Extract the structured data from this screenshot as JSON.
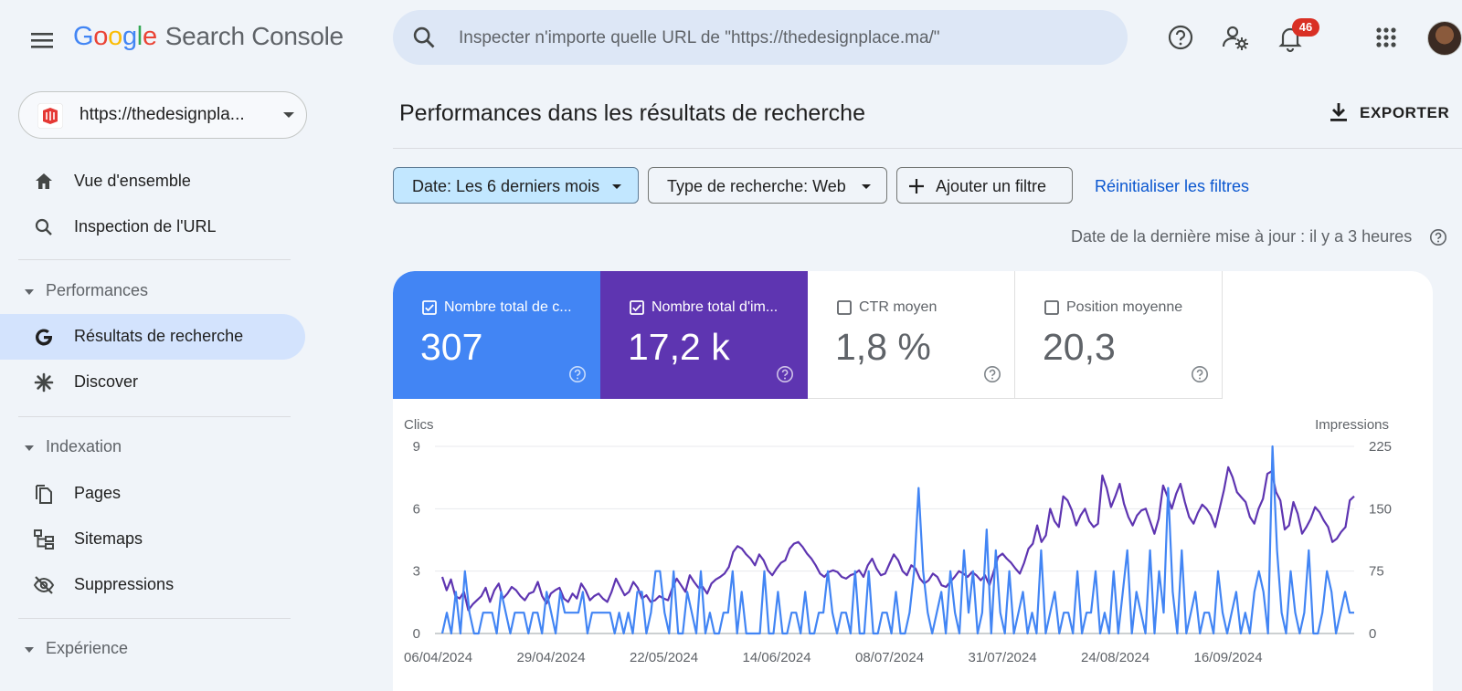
{
  "app": {
    "logo_letters": [
      {
        "ch": "G",
        "color": "#4285f4"
      },
      {
        "ch": "o",
        "color": "#ea4335"
      },
      {
        "ch": "o",
        "color": "#fbbc05"
      },
      {
        "ch": "g",
        "color": "#4285f4"
      },
      {
        "ch": "l",
        "color": "#34a853"
      },
      {
        "ch": "e",
        "color": "#ea4335"
      }
    ],
    "product_name": "Search Console"
  },
  "topbar": {
    "search_placeholder": "Inspecter n'importe quelle URL de \"https://thedesignplace.ma/\"",
    "notification_count": "46",
    "icons": [
      "menu-icon",
      "search-icon",
      "help-icon",
      "manage-users-icon",
      "notifications-icon",
      "apps-grid-icon",
      "avatar"
    ]
  },
  "sidebar": {
    "property": "https://thedesignpla...",
    "items": [
      {
        "id": "overview",
        "label": "Vue d'ensemble",
        "icon": "home-icon"
      },
      {
        "id": "url-inspection",
        "label": "Inspection de l'URL",
        "icon": "search-icon"
      }
    ],
    "sections": [
      {
        "label": "Performances"
      },
      {
        "label": "Indexation"
      },
      {
        "label": "Expérience"
      }
    ],
    "perf_items": [
      {
        "id": "search-results",
        "label": "Résultats de recherche",
        "icon": "google-g-icon",
        "active": true
      },
      {
        "id": "discover",
        "label": "Discover",
        "icon": "asterisk-icon"
      }
    ],
    "index_items": [
      {
        "id": "pages",
        "label": "Pages",
        "icon": "pages-icon"
      },
      {
        "id": "sitemaps",
        "label": "Sitemaps",
        "icon": "sitemap-icon"
      },
      {
        "id": "removals",
        "label": "Suppressions",
        "icon": "visibility-off-icon"
      }
    ]
  },
  "main": {
    "title": "Performances dans les résultats de recherche",
    "export_label": "EXPORTER",
    "filters": {
      "date": "Date: Les 6 derniers mois",
      "search_type": "Type de recherche: Web",
      "add_filter": "Ajouter un filtre",
      "reset": "Réinitialiser les filtres"
    },
    "last_update": "Date de la dernière mise à jour : il y a 3 heures",
    "metrics": [
      {
        "label": "Nombre total de c...",
        "value": "307",
        "checked": true,
        "color": "#4285f4"
      },
      {
        "label": "Nombre total d'im...",
        "value": "17,2 k",
        "checked": true,
        "color": "#5e35b1"
      },
      {
        "label": "CTR moyen",
        "value": "1,8 %",
        "checked": false
      },
      {
        "label": "Position moyenne",
        "value": "20,3",
        "checked": false
      }
    ]
  },
  "chart_data": {
    "type": "line",
    "left_axis_label": "Clics",
    "right_axis_label": "Impressions",
    "left_ylim": [
      0,
      9
    ],
    "right_ylim": [
      0,
      225
    ],
    "left_ticks": [
      "0",
      "3",
      "6",
      "9"
    ],
    "right_ticks": [
      "0",
      "75",
      "150",
      "225"
    ],
    "x_tick_labels": [
      "06/04/2024",
      "29/04/2024",
      "22/05/2024",
      "14/06/2024",
      "08/07/2024",
      "31/07/2024",
      "24/08/2024",
      "16/09/2024"
    ],
    "grid": true,
    "series": [
      {
        "name": "Clics",
        "axis": "left",
        "color": "#4285f4",
        "values": [
          0,
          1,
          0,
          2,
          0,
          3,
          1,
          0,
          0,
          1,
          1,
          1,
          0,
          2,
          1,
          0,
          1,
          1,
          1,
          0,
          1,
          1,
          0,
          2,
          1,
          0,
          2,
          1,
          1,
          1,
          1,
          2,
          0,
          1,
          1,
          1,
          1,
          1,
          0,
          1,
          0,
          1,
          0,
          2,
          2,
          0,
          1,
          3,
          3,
          1,
          0,
          3,
          0,
          0,
          2,
          1,
          0,
          3,
          0,
          1,
          0,
          0,
          1,
          1,
          3,
          0,
          2,
          0,
          0,
          0,
          0,
          3,
          0,
          0,
          2,
          0,
          0,
          1,
          1,
          0,
          2,
          0,
          0,
          1,
          1,
          3,
          1,
          0,
          1,
          1,
          0,
          3,
          0,
          0,
          3,
          0,
          0,
          1,
          1,
          0,
          2,
          0,
          0,
          1,
          3,
          7,
          3,
          1,
          0,
          1,
          2,
          0,
          3,
          1,
          0,
          4,
          1,
          3,
          0,
          1,
          5,
          0,
          4,
          1,
          0,
          3,
          0,
          1,
          2,
          0,
          1,
          0,
          4,
          0,
          1,
          2,
          0,
          1,
          1,
          0,
          3,
          0,
          1,
          1,
          3,
          0,
          1,
          0,
          3,
          0,
          2,
          4,
          0,
          2,
          1,
          0,
          4,
          0,
          3,
          1,
          7,
          2,
          0,
          4,
          0,
          1,
          2,
          0,
          1,
          1,
          0,
          3,
          1,
          0,
          1,
          2,
          0,
          1,
          0,
          2,
          3,
          2,
          0,
          9,
          4,
          1,
          0,
          3,
          1,
          0,
          1,
          4,
          0,
          0,
          1,
          3,
          2,
          0,
          1,
          2,
          1,
          1
        ]
      },
      {
        "name": "Impressions",
        "axis": "right",
        "color": "#5e35b1",
        "values": [
          68,
          52,
          65,
          45,
          42,
          50,
          28,
          35,
          40,
          45,
          55,
          38,
          52,
          60,
          42,
          48,
          56,
          52,
          45,
          40,
          48,
          50,
          62,
          45,
          36,
          48,
          52,
          55,
          42,
          38,
          48,
          42,
          60,
          52,
          40,
          45,
          48,
          42,
          38,
          50,
          66,
          56,
          46,
          50,
          62,
          55,
          42,
          46,
          38,
          40,
          45,
          42,
          40,
          55,
          66,
          58,
          50,
          70,
          62,
          55,
          56,
          48,
          60,
          65,
          68,
          72,
          80,
          98,
          105,
          102,
          95,
          90,
          82,
          95,
          88,
          76,
          70,
          78,
          85,
          88,
          102,
          108,
          110,
          104,
          96,
          90,
          82,
          72,
          68,
          74,
          76,
          74,
          68,
          66,
          70,
          72,
          76,
          68,
          82,
          90,
          78,
          70,
          72,
          84,
          95,
          88,
          75,
          70,
          82,
          78,
          66,
          60,
          64,
          72,
          68,
          58,
          56,
          62,
          68,
          75,
          72,
          68,
          74,
          70,
          64,
          70,
          58,
          75,
          92,
          96,
          90,
          85,
          78,
          72,
          85,
          102,
          108,
          130,
          110,
          118,
          150,
          135,
          128,
          165,
          160,
          148,
          130,
          142,
          150,
          135,
          128,
          132,
          190,
          175,
          152,
          165,
          180,
          156,
          140,
          130,
          142,
          148,
          150,
          135,
          120,
          138,
          178,
          165,
          150,
          168,
          180,
          158,
          140,
          132,
          145,
          155,
          150,
          142,
          128,
          150,
          172,
          200,
          188,
          170,
          164,
          158,
          140,
          132,
          150,
          162,
          192,
          195,
          170,
          160,
          125,
          130,
          158,
          144,
          120,
          128,
          138,
          152,
          146,
          136,
          128,
          110,
          114,
          122,
          128,
          160,
          165
        ]
      }
    ]
  }
}
